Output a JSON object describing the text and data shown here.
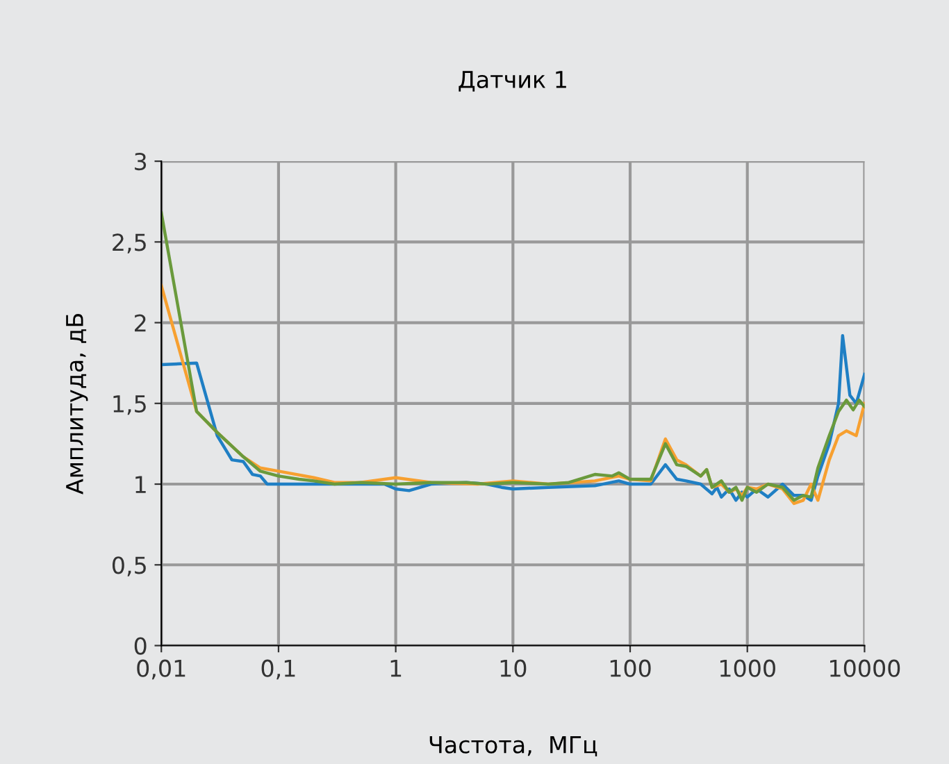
{
  "chart_data": {
    "type": "line",
    "title": "Датчик 1",
    "xlabel": "Частота,  МГц",
    "ylabel": "Амплитуда, дБ",
    "log": "x",
    "grid": true,
    "legend": false,
    "marker": "none",
    "line_style": "solid",
    "xlim": [
      0.01,
      10000
    ],
    "xticks": [
      {
        "value": 0.01,
        "label": "0,01"
      },
      {
        "value": 0.1,
        "label": "0,1"
      },
      1,
      10,
      100,
      1000,
      10000
    ],
    "ylim": [
      0,
      3
    ],
    "yticks": [
      0,
      {
        "value": 0.5,
        "label": "0,5"
      },
      1,
      {
        "value": 1.5,
        "label": "1,5"
      },
      2,
      {
        "value": 2.5,
        "label": "2,5"
      },
      3
    ],
    "series": [
      {
        "color": "#1f7fc4",
        "x": [
          0.01,
          0.02,
          0.03,
          0.04,
          0.05,
          0.06,
          0.07,
          0.08,
          0.1,
          0.2,
          0.5,
          0.8,
          1,
          1.3,
          2,
          4,
          6,
          8,
          10,
          20,
          50,
          80,
          100,
          150,
          200,
          250,
          300,
          400,
          500,
          550,
          600,
          700,
          800,
          900,
          1000,
          1200,
          1500,
          2000,
          2500,
          3000,
          3500,
          4000,
          5000,
          6000,
          6500,
          7500,
          8500,
          10000
        ],
        "values": [
          1.74,
          1.75,
          1.3,
          1.15,
          1.14,
          1.06,
          1.05,
          1.0,
          1.0,
          1.0,
          1.0,
          1.0,
          0.97,
          0.96,
          1.0,
          1.01,
          1.0,
          0.98,
          0.97,
          0.98,
          0.99,
          1.02,
          1.0,
          1.0,
          1.12,
          1.03,
          1.02,
          1.0,
          0.94,
          0.98,
          0.92,
          0.97,
          0.9,
          0.95,
          0.92,
          0.97,
          0.92,
          1.0,
          0.93,
          0.93,
          0.9,
          1.05,
          1.25,
          1.5,
          1.92,
          1.55,
          1.5,
          1.68
        ]
      },
      {
        "color": "#f7a030",
        "x": [
          0.01,
          0.02,
          0.03,
          0.05,
          0.07,
          0.1,
          0.2,
          0.3,
          0.5,
          1,
          2,
          5,
          10,
          20,
          50,
          80,
          100,
          150,
          200,
          250,
          300,
          400,
          450,
          500,
          600,
          700,
          800,
          900,
          1000,
          1200,
          1500,
          2000,
          2500,
          3000,
          3500,
          4000,
          5000,
          6000,
          7000,
          8500,
          10000
        ],
        "values": [
          2.23,
          1.45,
          1.32,
          1.17,
          1.1,
          1.08,
          1.04,
          1.01,
          1.01,
          1.04,
          1.01,
          1.0,
          1.02,
          1.0,
          1.02,
          1.05,
          1.03,
          1.02,
          1.28,
          1.15,
          1.12,
          1.05,
          1.09,
          0.98,
          1.0,
          0.95,
          0.97,
          0.93,
          0.98,
          0.97,
          1.0,
          0.97,
          0.88,
          0.9,
          1.0,
          0.9,
          1.15,
          1.3,
          1.33,
          1.3,
          1.5
        ]
      },
      {
        "color": "#6a9a3c",
        "x": [
          0.01,
          0.02,
          0.03,
          0.05,
          0.07,
          0.1,
          0.15,
          0.2,
          0.3,
          0.5,
          1,
          2,
          4,
          6,
          10,
          20,
          30,
          50,
          70,
          80,
          100,
          150,
          200,
          250,
          300,
          400,
          450,
          500,
          600,
          700,
          800,
          900,
          1000,
          1200,
          1500,
          2000,
          2500,
          3000,
          3500,
          4000,
          5000,
          6000,
          7000,
          8000,
          9000,
          10000
        ],
        "values": [
          2.68,
          1.45,
          1.32,
          1.17,
          1.08,
          1.05,
          1.03,
          1.02,
          1.0,
          1.01,
          1.0,
          1.01,
          1.01,
          1.0,
          1.01,
          1.0,
          1.01,
          1.06,
          1.05,
          1.07,
          1.03,
          1.03,
          1.25,
          1.12,
          1.11,
          1.05,
          1.09,
          0.98,
          1.02,
          0.95,
          0.98,
          0.9,
          0.98,
          0.95,
          1.0,
          0.98,
          0.9,
          0.93,
          0.92,
          1.1,
          1.3,
          1.45,
          1.52,
          1.46,
          1.52,
          1.48
        ]
      }
    ]
  }
}
